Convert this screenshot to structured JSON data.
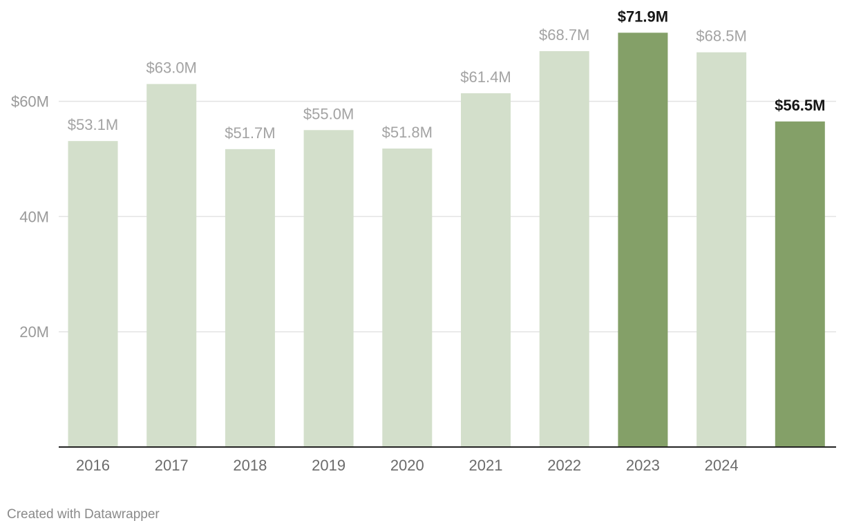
{
  "chart_data": {
    "type": "bar",
    "categories": [
      "2016",
      "2017",
      "2018",
      "2019",
      "2020",
      "2021",
      "2022",
      "2023",
      "2024",
      ""
    ],
    "values": [
      53.1,
      63.0,
      51.7,
      55.0,
      51.8,
      61.4,
      68.7,
      71.9,
      68.5,
      56.5
    ],
    "value_labels": [
      "$53.1M",
      "$63.0M",
      "$51.7M",
      "$55.0M",
      "$51.8M",
      "$61.4M",
      "$68.7M",
      "$71.9M",
      "$68.5M",
      "$56.5M"
    ],
    "highlighted": [
      false,
      false,
      false,
      false,
      false,
      false,
      false,
      true,
      false,
      true
    ],
    "title": "",
    "xlabel": "",
    "ylabel": "",
    "ylim": [
      0,
      75
    ],
    "yticks": [
      {
        "value": 20,
        "label": "20M"
      },
      {
        "value": 40,
        "label": "40M"
      },
      {
        "value": 60,
        "label": "$60M"
      }
    ],
    "grid": true,
    "legend": "none"
  },
  "colors": {
    "bar": "#d3dfcb",
    "bar_highlight": "#84a068",
    "grid": "#e3e3e3",
    "baseline": "#222222"
  },
  "footer": {
    "credit": "Created with Datawrapper"
  }
}
